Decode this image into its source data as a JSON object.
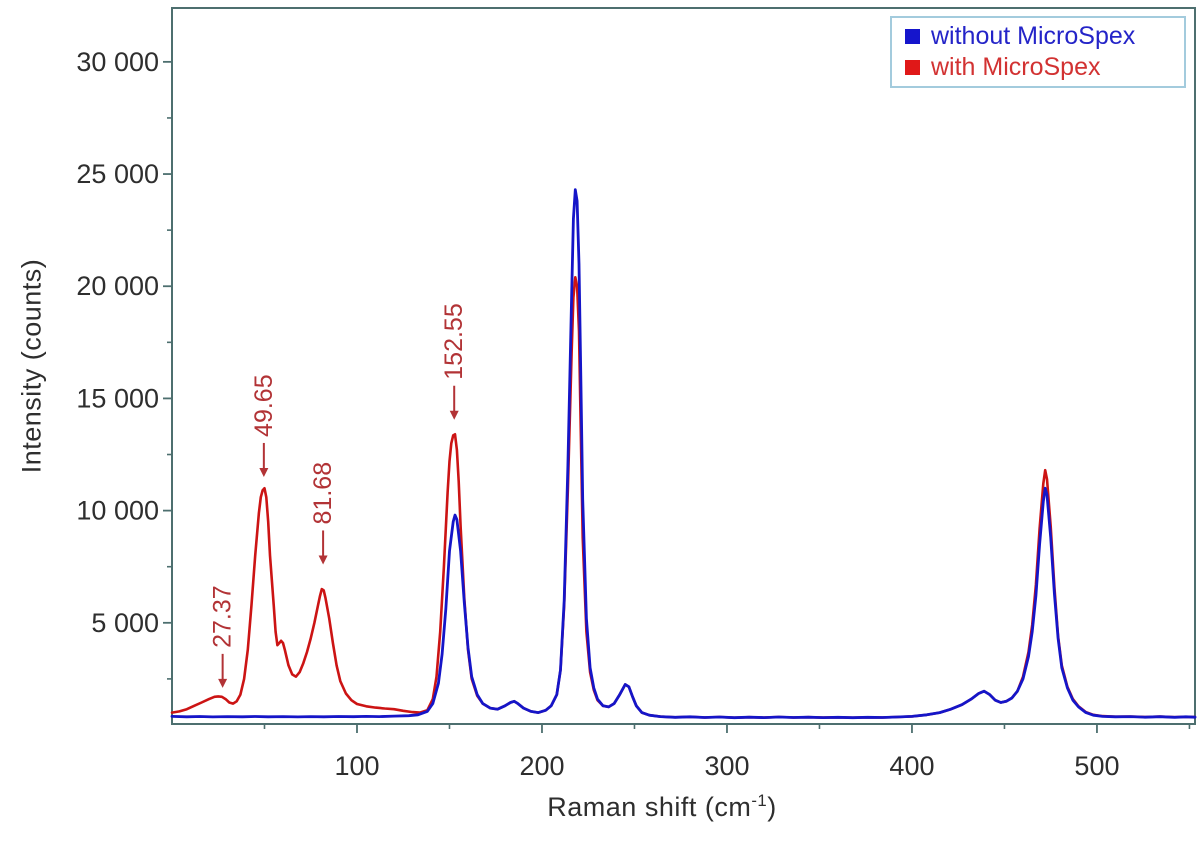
{
  "chart_data": {
    "type": "line",
    "title": "",
    "xlabel": "Raman shift (cm⁻¹)",
    "xlabel_parts": {
      "pre": "Raman shift (cm",
      "sup": "-1",
      "post": ")"
    },
    "ylabel": "Intensity (counts)",
    "xlim": [
      0,
      553
    ],
    "ylim": [
      490,
      32400
    ],
    "grid": false,
    "legend_position": "top-right",
    "x_major_ticks": [
      {
        "value": 100,
        "label": "100"
      },
      {
        "value": 200,
        "label": "200"
      },
      {
        "value": 300,
        "label": "300"
      },
      {
        "value": 400,
        "label": "400"
      },
      {
        "value": 500,
        "label": "500"
      }
    ],
    "x_minor_ticks": [
      50,
      150,
      250,
      350,
      450,
      550
    ],
    "y_major_ticks": [
      {
        "value": 5000,
        "label": "5 000"
      },
      {
        "value": 10000,
        "label": "10 000"
      },
      {
        "value": 15000,
        "label": "15 000"
      },
      {
        "value": 20000,
        "label": "20 000"
      },
      {
        "value": 25000,
        "label": "25 000"
      },
      {
        "value": 30000,
        "label": "30 000"
      }
    ],
    "y_minor_ticks": [
      2500,
      7500,
      12500,
      17500,
      22500,
      27500
    ],
    "legend": [
      {
        "label": "without MicroSpex",
        "color": "#1515cc"
      },
      {
        "label": "with MicroSpex",
        "color": "#e01818"
      }
    ],
    "series": [
      {
        "name": "with MicroSpex",
        "color": "#cc1414",
        "width": 2.6,
        "points": [
          [
            0,
            1000
          ],
          [
            4,
            1050
          ],
          [
            8,
            1150
          ],
          [
            12,
            1300
          ],
          [
            16,
            1450
          ],
          [
            20,
            1600
          ],
          [
            23,
            1700
          ],
          [
            25,
            1720
          ],
          [
            27,
            1700
          ],
          [
            29,
            1600
          ],
          [
            31,
            1450
          ],
          [
            33,
            1400
          ],
          [
            35,
            1500
          ],
          [
            37,
            1800
          ],
          [
            39,
            2500
          ],
          [
            41,
            3800
          ],
          [
            43,
            5800
          ],
          [
            45,
            8000
          ],
          [
            47,
            9900
          ],
          [
            48,
            10600
          ],
          [
            49,
            10900
          ],
          [
            50,
            11000
          ],
          [
            51,
            10600
          ],
          [
            52,
            9500
          ],
          [
            53,
            8000
          ],
          [
            55,
            5800
          ],
          [
            56,
            4600
          ],
          [
            57,
            4000
          ],
          [
            58,
            4100
          ],
          [
            59,
            4200
          ],
          [
            60,
            4100
          ],
          [
            61,
            3800
          ],
          [
            63,
            3100
          ],
          [
            65,
            2700
          ],
          [
            67,
            2600
          ],
          [
            69,
            2800
          ],
          [
            71,
            3200
          ],
          [
            73,
            3700
          ],
          [
            75,
            4300
          ],
          [
            77,
            5000
          ],
          [
            79,
            5800
          ],
          [
            80,
            6200
          ],
          [
            81,
            6500
          ],
          [
            82,
            6450
          ],
          [
            83,
            6100
          ],
          [
            85,
            5200
          ],
          [
            87,
            4100
          ],
          [
            89,
            3100
          ],
          [
            91,
            2400
          ],
          [
            94,
            1850
          ],
          [
            97,
            1550
          ],
          [
            100,
            1380
          ],
          [
            105,
            1280
          ],
          [
            110,
            1220
          ],
          [
            115,
            1180
          ],
          [
            120,
            1150
          ],
          [
            125,
            1080
          ],
          [
            130,
            1020
          ],
          [
            134,
            1000
          ],
          [
            138,
            1100
          ],
          [
            141,
            1600
          ],
          [
            143,
            2600
          ],
          [
            145,
            4600
          ],
          [
            147,
            7500
          ],
          [
            149,
            10800
          ],
          [
            150,
            12200
          ],
          [
            151,
            13000
          ],
          [
            152,
            13350
          ],
          [
            153,
            13400
          ],
          [
            154,
            12700
          ],
          [
            155,
            11300
          ],
          [
            156,
            9300
          ],
          [
            158,
            6100
          ],
          [
            160,
            3800
          ],
          [
            162,
            2500
          ],
          [
            165,
            1750
          ],
          [
            168,
            1400
          ],
          [
            172,
            1200
          ],
          [
            176,
            1150
          ],
          [
            180,
            1300
          ],
          [
            183,
            1450
          ],
          [
            185,
            1500
          ],
          [
            187,
            1400
          ],
          [
            190,
            1200
          ],
          [
            194,
            1050
          ],
          [
            198,
            1000
          ],
          [
            202,
            1100
          ],
          [
            205,
            1300
          ],
          [
            208,
            1800
          ],
          [
            210,
            2900
          ],
          [
            212,
            5800
          ],
          [
            214,
            11000
          ],
          [
            216,
            17000
          ],
          [
            217,
            19500
          ],
          [
            218,
            20400
          ],
          [
            219,
            20000
          ],
          [
            220,
            18000
          ],
          [
            221,
            13500
          ],
          [
            222,
            8800
          ],
          [
            224,
            4600
          ],
          [
            226,
            2800
          ],
          [
            228,
            2000
          ],
          [
            230,
            1550
          ],
          [
            233,
            1300
          ],
          [
            236,
            1250
          ],
          [
            239,
            1400
          ],
          [
            242,
            1800
          ],
          [
            245,
            2250
          ],
          [
            247,
            2150
          ],
          [
            249,
            1700
          ],
          [
            251,
            1300
          ],
          [
            254,
            1000
          ],
          [
            258,
            880
          ],
          [
            264,
            820
          ],
          [
            272,
            790
          ],
          [
            280,
            810
          ],
          [
            288,
            780
          ],
          [
            296,
            800
          ],
          [
            304,
            770
          ],
          [
            312,
            795
          ],
          [
            320,
            775
          ],
          [
            328,
            800
          ],
          [
            336,
            780
          ],
          [
            344,
            795
          ],
          [
            352,
            775
          ],
          [
            360,
            790
          ],
          [
            368,
            770
          ],
          [
            376,
            790
          ],
          [
            384,
            780
          ],
          [
            392,
            800
          ],
          [
            400,
            830
          ],
          [
            408,
            900
          ],
          [
            415,
            1000
          ],
          [
            421,
            1150
          ],
          [
            427,
            1350
          ],
          [
            432,
            1600
          ],
          [
            436,
            1850
          ],
          [
            439,
            1950
          ],
          [
            442,
            1800
          ],
          [
            445,
            1550
          ],
          [
            448,
            1450
          ],
          [
            451,
            1500
          ],
          [
            454,
            1650
          ],
          [
            457,
            1950
          ],
          [
            460,
            2600
          ],
          [
            463,
            3700
          ],
          [
            465,
            4900
          ],
          [
            467,
            6700
          ],
          [
            469,
            9200
          ],
          [
            471,
            11200
          ],
          [
            472,
            11800
          ],
          [
            473,
            11400
          ],
          [
            475,
            9300
          ],
          [
            477,
            6600
          ],
          [
            479,
            4400
          ],
          [
            481,
            3100
          ],
          [
            484,
            2150
          ],
          [
            487,
            1600
          ],
          [
            490,
            1280
          ],
          [
            494,
            1020
          ],
          [
            498,
            900
          ],
          [
            503,
            840
          ],
          [
            510,
            815
          ],
          [
            518,
            825
          ],
          [
            526,
            800
          ],
          [
            534,
            818
          ],
          [
            542,
            795
          ],
          [
            548,
            812
          ],
          [
            553,
            800
          ]
        ]
      },
      {
        "name": "without MicroSpex",
        "color": "#1515c8",
        "width": 2.8,
        "points": [
          [
            0,
            830
          ],
          [
            8,
            810
          ],
          [
            15,
            825
          ],
          [
            22,
            805
          ],
          [
            30,
            820
          ],
          [
            38,
            810
          ],
          [
            45,
            825
          ],
          [
            52,
            810
          ],
          [
            60,
            820
          ],
          [
            68,
            805
          ],
          [
            75,
            820
          ],
          [
            82,
            810
          ],
          [
            90,
            825
          ],
          [
            98,
            815
          ],
          [
            105,
            830
          ],
          [
            112,
            820
          ],
          [
            120,
            840
          ],
          [
            128,
            860
          ],
          [
            133,
            900
          ],
          [
            138,
            1050
          ],
          [
            141,
            1400
          ],
          [
            144,
            2300
          ],
          [
            146,
            3600
          ],
          [
            148,
            5600
          ],
          [
            150,
            8200
          ],
          [
            152,
            9500
          ],
          [
            153,
            9800
          ],
          [
            154,
            9600
          ],
          [
            156,
            8200
          ],
          [
            158,
            5900
          ],
          [
            160,
            3900
          ],
          [
            162,
            2600
          ],
          [
            165,
            1800
          ],
          [
            168,
            1400
          ],
          [
            172,
            1200
          ],
          [
            176,
            1150
          ],
          [
            180,
            1300
          ],
          [
            183,
            1450
          ],
          [
            185,
            1500
          ],
          [
            187,
            1400
          ],
          [
            190,
            1200
          ],
          [
            194,
            1050
          ],
          [
            198,
            1000
          ],
          [
            202,
            1100
          ],
          [
            205,
            1300
          ],
          [
            208,
            1800
          ],
          [
            210,
            2900
          ],
          [
            212,
            6000
          ],
          [
            214,
            12000
          ],
          [
            216,
            19500
          ],
          [
            217,
            23000
          ],
          [
            218,
            24300
          ],
          [
            219,
            23800
          ],
          [
            220,
            21000
          ],
          [
            221,
            16000
          ],
          [
            222,
            10500
          ],
          [
            224,
            5200
          ],
          [
            226,
            3000
          ],
          [
            228,
            2100
          ],
          [
            230,
            1600
          ],
          [
            233,
            1300
          ],
          [
            236,
            1250
          ],
          [
            239,
            1400
          ],
          [
            242,
            1800
          ],
          [
            245,
            2250
          ],
          [
            247,
            2150
          ],
          [
            249,
            1700
          ],
          [
            251,
            1300
          ],
          [
            254,
            1000
          ],
          [
            258,
            880
          ],
          [
            264,
            820
          ],
          [
            272,
            790
          ],
          [
            280,
            810
          ],
          [
            288,
            780
          ],
          [
            296,
            800
          ],
          [
            304,
            770
          ],
          [
            312,
            795
          ],
          [
            320,
            775
          ],
          [
            328,
            800
          ],
          [
            336,
            780
          ],
          [
            344,
            795
          ],
          [
            352,
            775
          ],
          [
            360,
            790
          ],
          [
            368,
            770
          ],
          [
            376,
            790
          ],
          [
            384,
            780
          ],
          [
            392,
            800
          ],
          [
            400,
            830
          ],
          [
            408,
            900
          ],
          [
            415,
            1000
          ],
          [
            421,
            1150
          ],
          [
            427,
            1350
          ],
          [
            432,
            1600
          ],
          [
            436,
            1850
          ],
          [
            439,
            1950
          ],
          [
            442,
            1800
          ],
          [
            445,
            1550
          ],
          [
            448,
            1450
          ],
          [
            451,
            1500
          ],
          [
            454,
            1650
          ],
          [
            457,
            1950
          ],
          [
            460,
            2500
          ],
          [
            463,
            3500
          ],
          [
            465,
            4600
          ],
          [
            467,
            6200
          ],
          [
            469,
            8500
          ],
          [
            471,
            10400
          ],
          [
            472,
            11000
          ],
          [
            473,
            10700
          ],
          [
            475,
            8800
          ],
          [
            477,
            6300
          ],
          [
            479,
            4300
          ],
          [
            481,
            3000
          ],
          [
            484,
            2100
          ],
          [
            487,
            1550
          ],
          [
            490,
            1250
          ],
          [
            494,
            1000
          ],
          [
            498,
            880
          ],
          [
            503,
            830
          ],
          [
            510,
            810
          ],
          [
            518,
            820
          ],
          [
            526,
            795
          ],
          [
            534,
            815
          ],
          [
            542,
            790
          ],
          [
            548,
            810
          ],
          [
            553,
            795
          ]
        ]
      }
    ],
    "peak_annotations": [
      {
        "label": "27.37",
        "x": 27.37,
        "arrow_tip_y": 2100
      },
      {
        "label": "49.65",
        "x": 49.65,
        "arrow_tip_y": 11500
      },
      {
        "label": "81.68",
        "x": 81.68,
        "arrow_tip_y": 7600
      },
      {
        "label": "152.55",
        "x": 152.55,
        "arrow_tip_y": 14050
      }
    ],
    "annotation_color": "#b23336"
  },
  "colors": {
    "frame": "#4d6f6f",
    "tick_label": "#2e2e2e",
    "background": "#ffffff",
    "legend_border": "#a3cbdd"
  }
}
